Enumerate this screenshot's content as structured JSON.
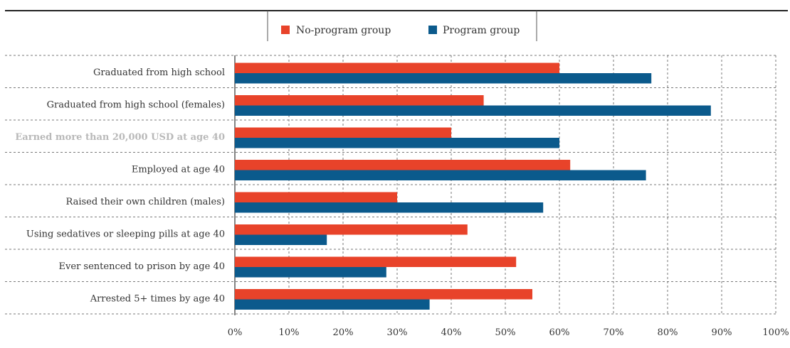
{
  "colors": {
    "no_program": "#e8432a",
    "program": "#0b5a8c",
    "grid": "#7a7a7a",
    "text": "#333333",
    "muted_label": "#b9b9b9"
  },
  "legend": {
    "items": [
      {
        "label": "No-program group",
        "color": "#e8432a"
      },
      {
        "label": "Program group",
        "color": "#0b5a8c"
      }
    ]
  },
  "chart_data": {
    "type": "bar",
    "orientation": "horizontal",
    "categories": [
      "Graduated from high school",
      "Graduated from high school (females)",
      "Earned more than 20,000 USD at age 40",
      "Employed at age 40",
      "Raised their own children (males)",
      "Using sedatives or sleeping pills at age 40",
      "Ever sentenced to prison by age 40",
      "Arrested 5+ times by age 40"
    ],
    "series": [
      {
        "name": "No-program group",
        "values": [
          60,
          46,
          40,
          62,
          30,
          43,
          52,
          55
        ]
      },
      {
        "name": "Program group",
        "values": [
          77,
          88,
          60,
          76,
          57,
          17,
          28,
          36
        ]
      }
    ],
    "xlim": [
      0,
      100
    ],
    "xticks": [
      "0%",
      "10%",
      "20%",
      "30%",
      "40%",
      "50%",
      "60%",
      "70%",
      "80%",
      "90%",
      "100%"
    ],
    "grid": true,
    "legend_position": "top-center",
    "muted_categories": [
      "Earned more than 20,000 USD at age 40"
    ]
  }
}
